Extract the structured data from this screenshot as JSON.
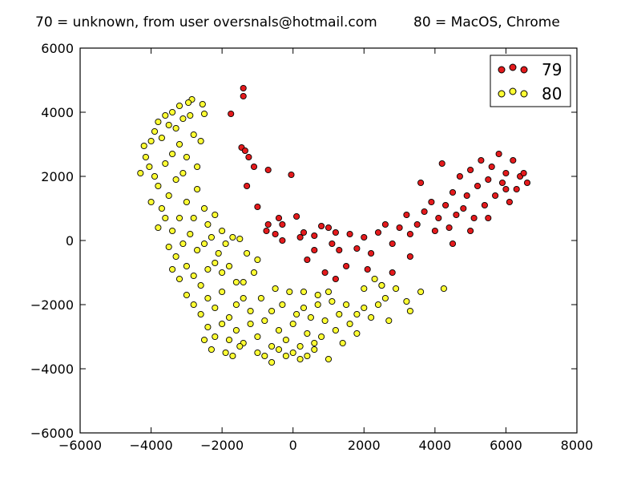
{
  "header": {
    "left_title": "70 = unknown, from user oversnals@hotmail.com",
    "right_title": "80 = MacOS, Chrome"
  },
  "chart_data": {
    "type": "scatter",
    "title": "",
    "xlabel": "",
    "ylabel": "",
    "xlim": [
      -6000,
      8000
    ],
    "ylim": [
      -6000,
      6000
    ],
    "xticks": [
      -6000,
      -4000,
      -2000,
      0,
      2000,
      4000,
      6000,
      8000
    ],
    "yticks": [
      -6000,
      -4000,
      -2000,
      0,
      2000,
      4000,
      6000
    ],
    "xtick_labels": [
      "−6000",
      "−4000",
      "−2000",
      "0",
      "2000",
      "4000",
      "6000",
      "8000"
    ],
    "ytick_labels": [
      "−6000",
      "−4000",
      "−2000",
      "0",
      "2000",
      "4000",
      "6000"
    ],
    "grid": false,
    "legend": {
      "placement": "top-right",
      "entries": [
        "79",
        "80"
      ]
    },
    "series": [
      {
        "name": "79",
        "color": "#e41a1c",
        "points": [
          [
            -1400,
            4750
          ],
          [
            -1400,
            4500
          ],
          [
            -1750,
            3950
          ],
          [
            -1450,
            2900
          ],
          [
            -1350,
            2800
          ],
          [
            -1250,
            2600
          ],
          [
            -1100,
            2300
          ],
          [
            -700,
            2200
          ],
          [
            -50,
            2050
          ],
          [
            -1300,
            1700
          ],
          [
            -1000,
            1050
          ],
          [
            -700,
            500
          ],
          [
            -400,
            700
          ],
          [
            -300,
            500
          ],
          [
            -750,
            300
          ],
          [
            -500,
            200
          ],
          [
            -300,
            0
          ],
          [
            100,
            750
          ],
          [
            300,
            250
          ],
          [
            600,
            150
          ],
          [
            800,
            450
          ],
          [
            1000,
            400
          ],
          [
            1200,
            250
          ],
          [
            1100,
            -100
          ],
          [
            1300,
            -300
          ],
          [
            1600,
            200
          ],
          [
            1800,
            -250
          ],
          [
            2000,
            100
          ],
          [
            2200,
            -400
          ],
          [
            2400,
            250
          ],
          [
            2600,
            500
          ],
          [
            2800,
            -100
          ],
          [
            3000,
            400
          ],
          [
            3200,
            800
          ],
          [
            3300,
            200
          ],
          [
            3500,
            500
          ],
          [
            3700,
            900
          ],
          [
            3900,
            1200
          ],
          [
            4000,
            300
          ],
          [
            4100,
            700
          ],
          [
            4300,
            1100
          ],
          [
            4400,
            400
          ],
          [
            4500,
            1500
          ],
          [
            4600,
            800
          ],
          [
            4700,
            2000
          ],
          [
            4800,
            1000
          ],
          [
            4900,
            1400
          ],
          [
            5000,
            2200
          ],
          [
            5100,
            700
          ],
          [
            5200,
            1700
          ],
          [
            5300,
            2500
          ],
          [
            5400,
            1100
          ],
          [
            5500,
            1900
          ],
          [
            5600,
            2300
          ],
          [
            5700,
            1400
          ],
          [
            5800,
            2700
          ],
          [
            5900,
            1800
          ],
          [
            6000,
            2100
          ],
          [
            6100,
            1200
          ],
          [
            6200,
            2500
          ],
          [
            6300,
            1600
          ],
          [
            6400,
            2000
          ],
          [
            6500,
            2100
          ],
          [
            6600,
            1800
          ],
          [
            4200,
            2400
          ],
          [
            3600,
            1800
          ],
          [
            2100,
            -900
          ],
          [
            1500,
            -800
          ],
          [
            900,
            -1000
          ],
          [
            600,
            -300
          ],
          [
            400,
            -600
          ],
          [
            200,
            100
          ],
          [
            1200,
            -1200
          ],
          [
            2500,
            -1400
          ],
          [
            3300,
            -500
          ],
          [
            2800,
            -1000
          ],
          [
            4500,
            -100
          ],
          [
            5000,
            300
          ],
          [
            5500,
            700
          ],
          [
            6000,
            1600
          ]
        ]
      },
      {
        "name": "80",
        "color": "#ffff33",
        "points": [
          [
            -2850,
            4400
          ],
          [
            -2950,
            4300
          ],
          [
            -3200,
            4200
          ],
          [
            -3400,
            4000
          ],
          [
            -3600,
            3900
          ],
          [
            -3800,
            3700
          ],
          [
            -2550,
            4250
          ],
          [
            -2500,
            3950
          ],
          [
            -3900,
            3400
          ],
          [
            -4000,
            3100
          ],
          [
            -4200,
            2950
          ],
          [
            -3700,
            3200
          ],
          [
            -3300,
            3500
          ],
          [
            -3100,
            3800
          ],
          [
            -2800,
            3300
          ],
          [
            -4150,
            2600
          ],
          [
            -4050,
            2300
          ],
          [
            -4300,
            2100
          ],
          [
            -3900,
            2000
          ],
          [
            -3600,
            2400
          ],
          [
            -3400,
            2700
          ],
          [
            -3200,
            3000
          ],
          [
            -3000,
            2600
          ],
          [
            -2700,
            2300
          ],
          [
            -3800,
            1700
          ],
          [
            -4000,
            1200
          ],
          [
            -3700,
            1000
          ],
          [
            -3500,
            1400
          ],
          [
            -3300,
            1900
          ],
          [
            -3100,
            2100
          ],
          [
            -2700,
            1600
          ],
          [
            -2500,
            1000
          ],
          [
            -3600,
            700
          ],
          [
            -3800,
            400
          ],
          [
            -3400,
            300
          ],
          [
            -3200,
            700
          ],
          [
            -3000,
            1200
          ],
          [
            -2800,
            700
          ],
          [
            -2400,
            500
          ],
          [
            -2200,
            800
          ],
          [
            -3500,
            -200
          ],
          [
            -3300,
            -500
          ],
          [
            -3100,
            -100
          ],
          [
            -2900,
            200
          ],
          [
            -2700,
            -300
          ],
          [
            -2500,
            -100
          ],
          [
            -2300,
            100
          ],
          [
            -2000,
            300
          ],
          [
            -1700,
            100
          ],
          [
            -3400,
            -900
          ],
          [
            -3200,
            -1200
          ],
          [
            -3000,
            -800
          ],
          [
            -2800,
            -1100
          ],
          [
            -2600,
            -1400
          ],
          [
            -2400,
            -900
          ],
          [
            -2200,
            -700
          ],
          [
            -2000,
            -1000
          ],
          [
            -1800,
            -800
          ],
          [
            -1600,
            -1300
          ],
          [
            -3000,
            -1700
          ],
          [
            -2800,
            -2000
          ],
          [
            -2600,
            -2300
          ],
          [
            -2400,
            -1800
          ],
          [
            -2200,
            -2100
          ],
          [
            -2000,
            -1600
          ],
          [
            -1800,
            -2400
          ],
          [
            -1600,
            -2000
          ],
          [
            -1400,
            -1800
          ],
          [
            -1200,
            -2200
          ],
          [
            -2400,
            -2700
          ],
          [
            -2200,
            -3000
          ],
          [
            -2000,
            -2600
          ],
          [
            -1800,
            -3100
          ],
          [
            -1600,
            -2800
          ],
          [
            -1400,
            -3200
          ],
          [
            -1200,
            -2600
          ],
          [
            -1000,
            -3000
          ],
          [
            -800,
            -2500
          ],
          [
            -600,
            -3300
          ],
          [
            -400,
            -2800
          ],
          [
            -200,
            -3100
          ],
          [
            0,
            -2600
          ],
          [
            200,
            -3300
          ],
          [
            400,
            -2900
          ],
          [
            600,
            -3400
          ],
          [
            800,
            -3000
          ],
          [
            1000,
            -3700
          ],
          [
            1200,
            -2800
          ],
          [
            1400,
            -3200
          ],
          [
            1600,
            -2600
          ],
          [
            1800,
            -2900
          ],
          [
            -1000,
            -3500
          ],
          [
            -800,
            -3600
          ],
          [
            -600,
            -3800
          ],
          [
            -400,
            -3400
          ],
          [
            -200,
            -3600
          ],
          [
            0,
            -3500
          ],
          [
            200,
            -3700
          ],
          [
            400,
            -3600
          ],
          [
            600,
            -3200
          ],
          [
            -2500,
            -3100
          ],
          [
            -2300,
            -3400
          ],
          [
            -1900,
            -3500
          ],
          [
            -1500,
            -3300
          ],
          [
            -1700,
            -3600
          ],
          [
            -900,
            -1800
          ],
          [
            -600,
            -2200
          ],
          [
            -300,
            -2000
          ],
          [
            100,
            -2300
          ],
          [
            300,
            -2100
          ],
          [
            500,
            -2400
          ],
          [
            700,
            -2000
          ],
          [
            900,
            -2500
          ],
          [
            1100,
            -1900
          ],
          [
            1300,
            -2300
          ],
          [
            -500,
            -1500
          ],
          [
            -100,
            -1600
          ],
          [
            300,
            -1600
          ],
          [
            700,
            -1700
          ],
          [
            1000,
            -1600
          ],
          [
            1500,
            -2000
          ],
          [
            1800,
            -2300
          ],
          [
            2000,
            -2100
          ],
          [
            2200,
            -2400
          ],
          [
            2400,
            -2000
          ],
          [
            2600,
            -1800
          ],
          [
            2900,
            -1500
          ],
          [
            3200,
            -1900
          ],
          [
            3300,
            -2200
          ],
          [
            3600,
            -1600
          ],
          [
            4250,
            -1500
          ],
          [
            2700,
            -2500
          ],
          [
            2300,
            -1200
          ],
          [
            2500,
            -1400
          ],
          [
            2000,
            -1500
          ],
          [
            -1400,
            -1300
          ],
          [
            -1100,
            -1000
          ],
          [
            -2100,
            -400
          ],
          [
            -1900,
            -100
          ],
          [
            -1500,
            50
          ],
          [
            -1300,
            -400
          ],
          [
            -1000,
            -600
          ],
          [
            -2600,
            3100
          ],
          [
            -2900,
            3900
          ],
          [
            -3500,
            3600
          ]
        ]
      }
    ]
  },
  "legend": {
    "entry1": "79",
    "entry2": "80"
  }
}
